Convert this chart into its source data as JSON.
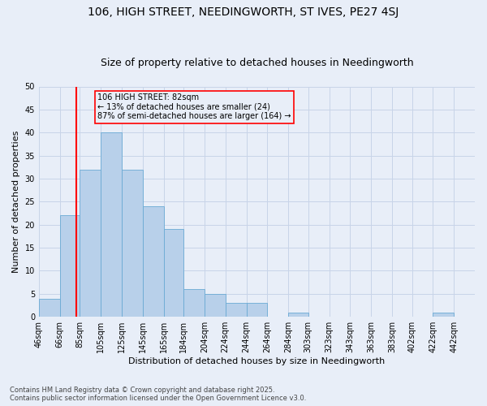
{
  "title": "106, HIGH STREET, NEEDINGWORTH, ST IVES, PE27 4SJ",
  "subtitle": "Size of property relative to detached houses in Needingworth",
  "xlabel": "Distribution of detached houses by size in Needingworth",
  "ylabel": "Number of detached properties",
  "footer": "Contains HM Land Registry data © Crown copyright and database right 2025.\nContains public sector information licensed under the Open Government Licence v3.0.",
  "bin_labels": [
    "46sqm",
    "66sqm",
    "85sqm",
    "105sqm",
    "125sqm",
    "145sqm",
    "165sqm",
    "184sqm",
    "204sqm",
    "224sqm",
    "244sqm",
    "264sqm",
    "284sqm",
    "303sqm",
    "323sqm",
    "343sqm",
    "363sqm",
    "383sqm",
    "402sqm",
    "422sqm",
    "442sqm"
  ],
  "bin_edges": [
    46,
    66,
    85,
    105,
    125,
    145,
    165,
    184,
    204,
    224,
    244,
    264,
    284,
    303,
    323,
    343,
    363,
    383,
    402,
    422,
    442,
    462
  ],
  "values": [
    4,
    22,
    32,
    40,
    32,
    24,
    19,
    6,
    5,
    3,
    3,
    0,
    1,
    0,
    0,
    0,
    0,
    0,
    0,
    1,
    0
  ],
  "bar_color": "#b8d0ea",
  "bar_edge_color": "#6aaad4",
  "grid_color": "#c8d4e8",
  "background_color": "#e8eef8",
  "red_line_x": 82,
  "annotation_box_text": "106 HIGH STREET: 82sqm\n← 13% of detached houses are smaller (24)\n87% of semi-detached houses are larger (164) →",
  "ylim": [
    0,
    50
  ],
  "yticks": [
    0,
    5,
    10,
    15,
    20,
    25,
    30,
    35,
    40,
    45,
    50
  ],
  "title_fontsize": 10,
  "subtitle_fontsize": 9,
  "label_fontsize": 8,
  "tick_fontsize": 7
}
